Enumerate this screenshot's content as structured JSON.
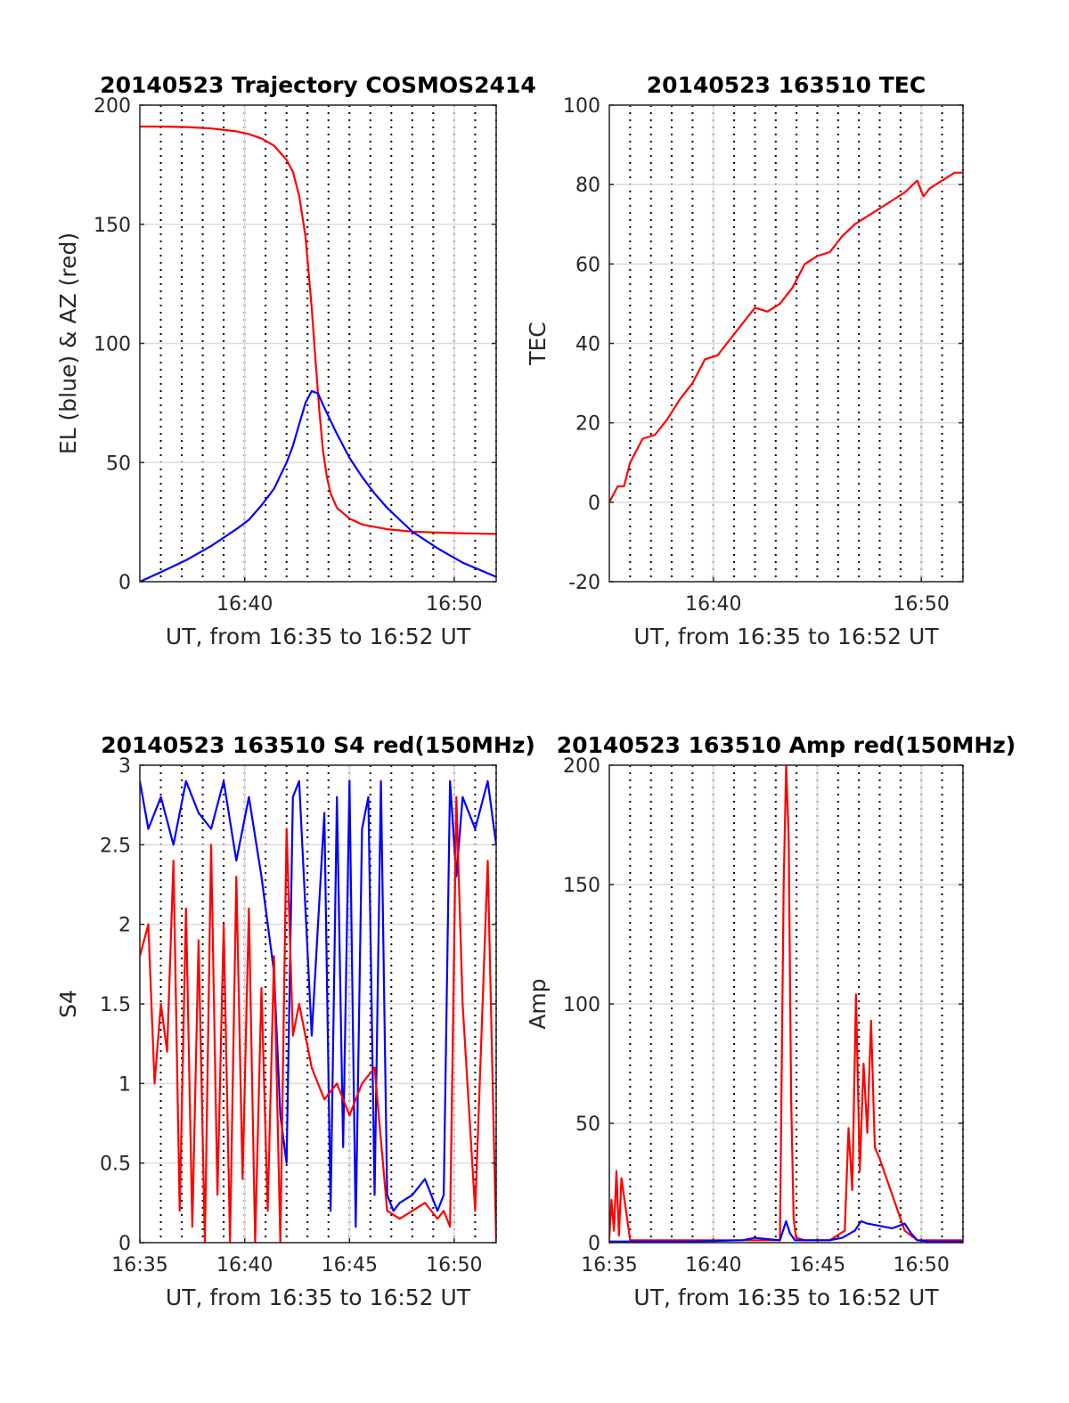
{
  "figure": {
    "background": "#ffffff"
  },
  "chart_data": [
    {
      "id": "trajectory",
      "type": "line",
      "title": "20140523 Trajectory COSMOS2414",
      "xlabel": "UT, from 16:35 to 16:52 UT",
      "ylabel": "EL (blue) & AZ (red)",
      "xlim": [
        16.5833,
        16.8667
      ],
      "ylim": [
        0,
        200
      ],
      "x_ticks": [
        {
          "value": 16.6667,
          "label": "16:40"
        },
        {
          "value": 16.8333,
          "label": "16:50"
        }
      ],
      "y_ticks": [
        {
          "value": 0,
          "label": "0"
        },
        {
          "value": 50,
          "label": "50"
        },
        {
          "value": 100,
          "label": "100"
        },
        {
          "value": 150,
          "label": "150"
        },
        {
          "value": 200,
          "label": "200"
        }
      ],
      "grid": {
        "vertical": "dotted",
        "horizontal": "solid"
      },
      "series": [
        {
          "color": "#ff0000",
          "x": [
            16.5833,
            16.6,
            16.62,
            16.64,
            16.66,
            16.67,
            16.68,
            16.69,
            16.7,
            16.705,
            16.71,
            16.715,
            16.72,
            16.723,
            16.726,
            16.729,
            16.732,
            16.735,
            16.74,
            16.75,
            16.76,
            16.78,
            16.8,
            16.82,
            16.84,
            16.86,
            16.8667
          ],
          "y": [
            191,
            191,
            190.8,
            190.2,
            189,
            187.8,
            186,
            183,
            177,
            172,
            162,
            145,
            115,
            93,
            72,
            55,
            44,
            37,
            31,
            26.5,
            24,
            22,
            21,
            20.6,
            20.3,
            20.1,
            20
          ]
        },
        {
          "color": "#0000ff",
          "x": [
            16.5833,
            16.6,
            16.62,
            16.64,
            16.66,
            16.67,
            16.68,
            16.69,
            16.7,
            16.705,
            16.71,
            16.715,
            16.72,
            16.725,
            16.73,
            16.74,
            16.75,
            16.76,
            16.77,
            16.78,
            16.79,
            16.8,
            16.82,
            16.84,
            16.8667
          ],
          "y": [
            0,
            4,
            9,
            15,
            22,
            26,
            32,
            39,
            50,
            57,
            66,
            75,
            80,
            79,
            73,
            62,
            52,
            44,
            37,
            31,
            26,
            21,
            14,
            8,
            2
          ]
        }
      ]
    },
    {
      "id": "tec",
      "type": "line",
      "title": "20140523 163510 TEC",
      "xlabel": "UT, from 16:35 to 16:52 UT",
      "ylabel": "TEC",
      "xlim": [
        16.5833,
        16.8667
      ],
      "ylim": [
        -20,
        100
      ],
      "x_ticks": [
        {
          "value": 16.6667,
          "label": "16:40"
        },
        {
          "value": 16.8333,
          "label": "16:50"
        }
      ],
      "y_ticks": [
        {
          "value": -20,
          "label": "-20"
        },
        {
          "value": 0,
          "label": "0"
        },
        {
          "value": 20,
          "label": "20"
        },
        {
          "value": 40,
          "label": "40"
        },
        {
          "value": 60,
          "label": "60"
        },
        {
          "value": 80,
          "label": "80"
        },
        {
          "value": 100,
          "label": "100"
        }
      ],
      "grid": {
        "vertical": "dotted",
        "horizontal": "solid"
      },
      "series": [
        {
          "color": "#ff0000",
          "x": [
            16.5833,
            16.59,
            16.595,
            16.6,
            16.61,
            16.62,
            16.63,
            16.64,
            16.65,
            16.66,
            16.67,
            16.68,
            16.69,
            16.7,
            16.71,
            16.72,
            16.73,
            16.74,
            16.75,
            16.76,
            16.77,
            16.78,
            16.79,
            16.8,
            16.81,
            16.82,
            16.83,
            16.835,
            16.84,
            16.85,
            16.86,
            16.8667
          ],
          "y": [
            0,
            4,
            4,
            10,
            16,
            17,
            21,
            26,
            30,
            36,
            37,
            41,
            45,
            49,
            48,
            50,
            54,
            60,
            62,
            63,
            67,
            70,
            72,
            74,
            76,
            78,
            81,
            77,
            79,
            81,
            83,
            83
          ]
        }
      ]
    },
    {
      "id": "s4",
      "type": "line",
      "title": "20140523 163510 S4 red(150MHz)",
      "xlabel": "UT, from 16:35 to 16:52 UT",
      "ylabel": "S4",
      "xlim": [
        16.5833,
        16.8667
      ],
      "ylim": [
        0,
        3
      ],
      "x_ticks": [
        {
          "value": 16.5833,
          "label": "16:35"
        },
        {
          "value": 16.6667,
          "label": "16:40"
        },
        {
          "value": 16.75,
          "label": "16:45"
        },
        {
          "value": 16.8333,
          "label": "16:50"
        }
      ],
      "y_ticks": [
        {
          "value": 0,
          "label": "0"
        },
        {
          "value": 0.5,
          "label": "0.5"
        },
        {
          "value": 1,
          "label": "1"
        },
        {
          "value": 1.5,
          "label": "1.5"
        },
        {
          "value": 2,
          "label": "2"
        },
        {
          "value": 2.5,
          "label": "2.5"
        },
        {
          "value": 3,
          "label": "3"
        }
      ],
      "grid": {
        "vertical": "dotted",
        "horizontal": "solid"
      },
      "series": [
        {
          "color": "#0000ff",
          "x": [
            16.5833,
            16.59,
            16.6,
            16.61,
            16.62,
            16.63,
            16.64,
            16.65,
            16.66,
            16.67,
            16.68,
            16.69,
            16.695,
            16.7,
            16.705,
            16.71,
            16.72,
            16.73,
            16.735,
            16.74,
            16.745,
            16.75,
            16.755,
            16.76,
            16.765,
            16.77,
            16.775,
            16.78,
            16.785,
            16.79,
            16.8,
            16.81,
            16.82,
            16.825,
            16.83,
            16.835,
            16.84,
            16.85,
            16.86,
            16.8667
          ],
          "y": [
            2.9,
            2.6,
            2.8,
            2.5,
            2.9,
            2.7,
            2.6,
            2.9,
            2.4,
            2.8,
            2.3,
            1.7,
            0.8,
            0.5,
            2.8,
            2.9,
            1.3,
            2.7,
            0.2,
            2.8,
            0.6,
            2.9,
            0.1,
            2.6,
            2.8,
            0.3,
            2.9,
            0.3,
            0.2,
            0.25,
            0.3,
            0.4,
            0.2,
            0.3,
            2.9,
            2.3,
            2.8,
            2.6,
            2.9,
            2.5
          ]
        },
        {
          "color": "#ff0000",
          "x": [
            16.5833,
            16.59,
            16.595,
            16.6,
            16.605,
            16.61,
            16.615,
            16.62,
            16.625,
            16.63,
            16.635,
            16.64,
            16.645,
            16.65,
            16.655,
            16.66,
            16.665,
            16.67,
            16.675,
            16.68,
            16.685,
            16.69,
            16.695,
            16.7,
            16.705,
            16.71,
            16.72,
            16.73,
            16.74,
            16.75,
            16.76,
            16.77,
            16.78,
            16.79,
            16.8,
            16.81,
            16.82,
            16.825,
            16.83,
            16.835,
            16.84,
            16.85,
            16.86,
            16.8667
          ],
          "y": [
            1.8,
            2.0,
            1.0,
            1.5,
            1.2,
            2.4,
            0.2,
            2.1,
            0.1,
            1.9,
            0.0,
            2.5,
            0.3,
            2.0,
            0.0,
            2.3,
            0.4,
            2.1,
            0.0,
            1.6,
            0.2,
            1.8,
            0.0,
            2.6,
            1.3,
            1.5,
            1.1,
            0.9,
            1.0,
            0.8,
            1.0,
            1.1,
            0.2,
            0.15,
            0.2,
            0.25,
            0.15,
            0.2,
            0.1,
            2.8,
            1.5,
            0.2,
            2.4,
            0.0
          ]
        }
      ]
    },
    {
      "id": "amp",
      "type": "line",
      "title": "20140523 163510 Amp red(150MHz)",
      "xlabel": "UT, from 16:35 to 16:52 UT",
      "ylabel": "Amp",
      "xlim": [
        16.5833,
        16.8667
      ],
      "ylim": [
        0,
        200
      ],
      "x_ticks": [
        {
          "value": 16.5833,
          "label": "16:35"
        },
        {
          "value": 16.6667,
          "label": "16:40"
        },
        {
          "value": 16.75,
          "label": "16:45"
        },
        {
          "value": 16.8333,
          "label": "16:50"
        }
      ],
      "y_ticks": [
        {
          "value": 0,
          "label": "0"
        },
        {
          "value": 50,
          "label": "50"
        },
        {
          "value": 100,
          "label": "100"
        },
        {
          "value": 150,
          "label": "150"
        },
        {
          "value": 200,
          "label": "200"
        }
      ],
      "grid": {
        "vertical": "dotted",
        "horizontal": "solid"
      },
      "series": [
        {
          "color": "#ff0000",
          "x": [
            16.5833,
            16.585,
            16.587,
            16.589,
            16.591,
            16.593,
            16.6,
            16.65,
            16.7,
            16.72,
            16.723,
            16.725,
            16.727,
            16.729,
            16.731,
            16.733,
            16.74,
            16.76,
            16.772,
            16.775,
            16.778,
            16.781,
            16.784,
            16.787,
            16.79,
            16.793,
            16.796,
            16.8,
            16.81,
            16.82,
            16.83,
            16.84,
            16.8667
          ],
          "y": [
            2,
            18,
            5,
            30,
            3,
            27,
            1,
            1,
            1,
            1,
            150,
            200,
            170,
            60,
            10,
            2,
            1,
            1,
            5,
            48,
            22,
            104,
            30,
            75,
            46,
            93,
            40,
            35,
            20,
            5,
            1,
            1,
            1
          ]
        },
        {
          "color": "#0000ff",
          "x": [
            16.5833,
            16.6,
            16.65,
            16.69,
            16.7,
            16.72,
            16.725,
            16.728,
            16.732,
            16.74,
            16.76,
            16.77,
            16.78,
            16.785,
            16.79,
            16.8,
            16.81,
            16.82,
            16.825,
            16.83,
            16.84,
            16.8667
          ],
          "y": [
            0.5,
            0.5,
            0.5,
            1,
            2,
            1,
            9,
            4,
            1,
            1,
            1,
            2,
            5,
            9,
            8,
            7,
            6,
            8,
            4,
            1,
            0.5,
            0.5
          ]
        }
      ]
    }
  ]
}
